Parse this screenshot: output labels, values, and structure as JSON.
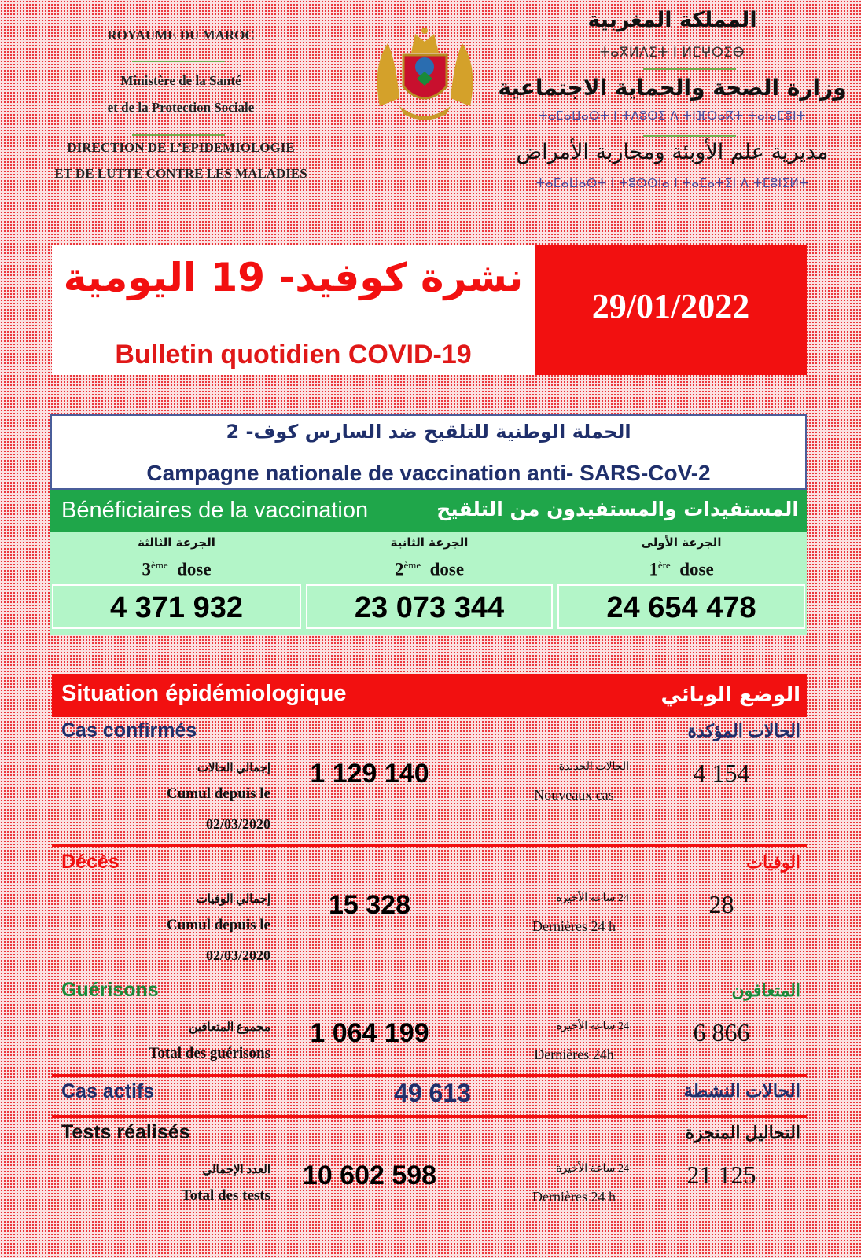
{
  "header_left": {
    "kingdom": "ROYAUME DU MAROC",
    "ministry_1": "Ministère de la Santé",
    "ministry_2": "et de la Protection Sociale",
    "direction_1": "DIRECTION DE L’EPIDEMIOLOGIE",
    "direction_2": "ET DE LUTTE CONTRE LES MALADIES"
  },
  "header_right": {
    "kingdom_ar": "المملكة المغربية",
    "kingdom_tif": "ⵜⴰⴳⵍⴷⵉⵜ ⵏ ⵍⵎⵖⵔⵉⴱ",
    "ministry_ar": "وزارة الصحة والحماية الاجتماعية",
    "ministry_tif": "ⵜⴰⵎⴰⵡⴰⵙⵜ ⵏ ⵜⴷⵓⵙⵉ ⴷ ⵜⵏⴼⵔⴰⴽⵜ ⵜⴰⵏⴰⵎⵓⵏⵜ",
    "direction_ar": "مديرية علم الأوبئة ومحاربة الأمراض",
    "direction_tif": "ⵜⴰⵎⴰⵡⴰⵙⵜ ⵏ ⵜⵓⵙⵙⵏⴰ ⵏ ⵜⴰⵎⴰⵜⵉⵏ ⴷ ⵜⵎⵓⵏⵉⵍⵜ"
  },
  "emblem": "coat-of-arms-of-morocco",
  "title": {
    "ar": "نشرة كوفيد- 19 اليومية",
    "fr": "Bulletin quotidien COVID-19",
    "date": "29/01/2022"
  },
  "vaccination": {
    "campaign_ar": "الحملة الوطنية للتلقيح ضد السارس كوف- 2",
    "campaign_fr": "Campagne nationale de vaccination anti- SARS-CoV-2",
    "beneficiaries_fr": "Bénéficiaires de la vaccination",
    "beneficiaries_ar": "المستفيدات والمستفيدون من التلقيح",
    "doses": [
      {
        "ar": "الجرعة الثالثة",
        "num": "3",
        "sup": "ème",
        "label": "dose",
        "value": "4 371 932"
      },
      {
        "ar": "الجرعة الثانية",
        "num": "2",
        "sup": "ème",
        "label": "dose",
        "value": "23 073 344"
      },
      {
        "ar": "الجرعة الأولى",
        "num": "1",
        "sup": "ère",
        "label": "dose",
        "value": "24 654 478"
      }
    ]
  },
  "situation": {
    "title_fr": "Situation épidémiologique",
    "title_ar": "الوضع الوبائي",
    "confirmed": {
      "fr": "Cas confirmés",
      "ar": "الحالات المؤكدة",
      "total_ar": "إجمالي الحالات",
      "total_fr": "Cumul depuis le",
      "since": "02/03/2020",
      "total": "1 129 140",
      "new_ar": "الحالات الجديدة",
      "new_fr": "Nouveaux cas",
      "new": "4 154"
    },
    "deaths": {
      "fr": "Décès",
      "ar": "الوفيات",
      "total_ar": "إجمالي الوفيات",
      "total_fr": "Cumul depuis le",
      "since": "02/03/2020",
      "total": "15 328",
      "new_ar": "24 ساعة الأخيرة",
      "new_fr": "Dernières 24 h",
      "new": "28"
    },
    "recoveries": {
      "fr": "Guérisons",
      "ar": "المتعافون",
      "total_ar": "مجموع المتعافين",
      "total_fr": "Total des guérisons",
      "total": "1 064 199",
      "new_ar": "24 ساعة الأخيرة",
      "new_fr": "Dernières 24h",
      "new": "6 866"
    },
    "active": {
      "fr": "Cas actifs",
      "ar": "الحالات النشطة",
      "value": "49 613"
    },
    "tests": {
      "fr": "Tests réalisés",
      "ar": "التحاليل المنجزة",
      "total_ar": "العدد الإجمالي",
      "total_fr": "Total des tests",
      "total": "10 602 598",
      "new_ar": "24 ساعة الأخيرة",
      "new_fr": "Dernières 24 h",
      "new": "21 125"
    }
  },
  "colors": {
    "red": "#f21010",
    "green": "#1fa64a",
    "light_green": "#b3f5c8",
    "navy": "#1f2f6b"
  }
}
